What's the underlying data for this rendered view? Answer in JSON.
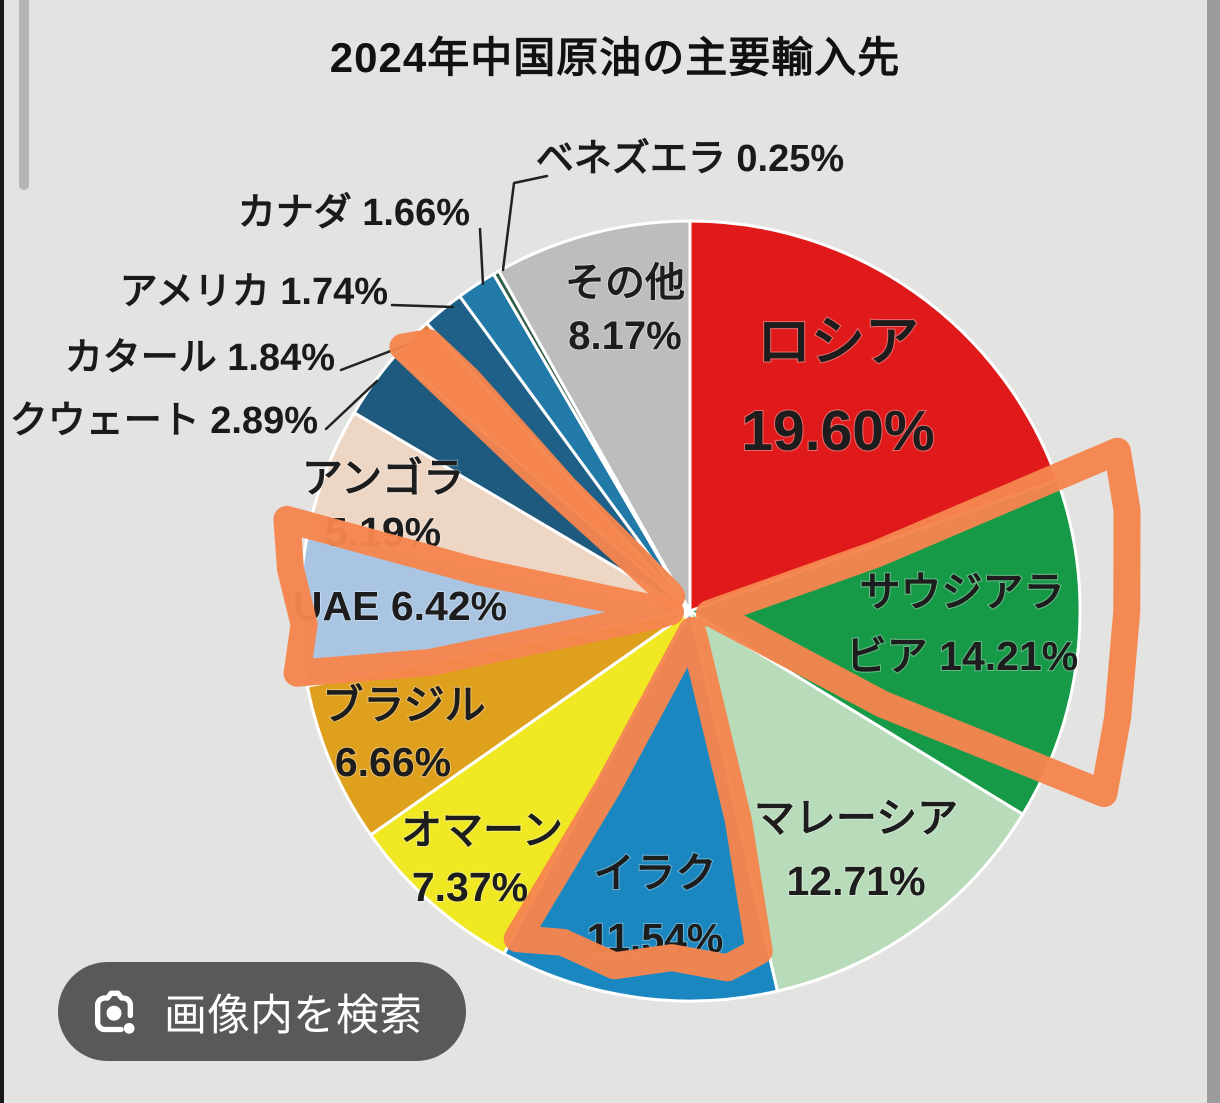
{
  "page": {
    "background_color": "#e3e3e2",
    "edge_strip_left_color": "#181818",
    "edge_strip_right_color": "#9c9c9c"
  },
  "chart_data": {
    "type": "pie",
    "title": "2024年中国原油の主要輸入先",
    "unit": "%",
    "legend_position": "none",
    "series": [
      {
        "label": "ロシア",
        "value": 19.6,
        "color": "#e01a1b",
        "label_lines": [
          "ロシア",
          "19.60%"
        ],
        "label_placement": "inside"
      },
      {
        "label": "サウジアラビア",
        "value": 14.21,
        "color": "#169a48",
        "label_lines": [
          "サウジアラ",
          "ビア 14.21%"
        ],
        "label_placement": "inside"
      },
      {
        "label": "マレーシア",
        "value": 12.71,
        "color": "#b8dbb9",
        "label_lines": [
          "マレーシア",
          "12.71%"
        ],
        "label_placement": "inside"
      },
      {
        "label": "イラク",
        "value": 11.54,
        "color": "#1b87c1",
        "label_lines": [
          "イラク",
          "11.54%"
        ],
        "label_placement": "inside"
      },
      {
        "label": "オマーン",
        "value": 7.37,
        "color": "#f0e822",
        "label_lines": [
          "オマーン",
          "7.37%"
        ],
        "label_placement": "inside"
      },
      {
        "label": "ブラジル",
        "value": 6.66,
        "color": "#dfa01d",
        "label_lines": [
          "ブラジル",
          "6.66%"
        ],
        "label_placement": "inside"
      },
      {
        "label": "UAE",
        "value": 6.42,
        "color": "#a9c5e2",
        "label_lines": [
          "UAE 6.42%"
        ],
        "label_placement": "inside"
      },
      {
        "label": "アンゴラ",
        "value": 5.19,
        "color": "#edd6c4",
        "label_lines": [
          "アンゴラ",
          "5.19%"
        ],
        "label_placement": "inside"
      },
      {
        "label": "クウェート",
        "value": 2.89,
        "color": "#1e5a7d",
        "label_lines": [
          "クウェート 2.89%"
        ],
        "label_placement": "outside"
      },
      {
        "label": "カタール",
        "value": 1.84,
        "color": "#d97b36",
        "label_lines": [
          "カタール 1.84%"
        ],
        "label_placement": "outside"
      },
      {
        "label": "アメリカ",
        "value": 1.74,
        "color": "#1f6089",
        "label_lines": [
          "アメリカ 1.74%"
        ],
        "label_placement": "outside"
      },
      {
        "label": "カナダ",
        "value": 1.66,
        "color": "#227aa8",
        "label_lines": [
          "カナダ 1.66%"
        ],
        "label_placement": "outside"
      },
      {
        "label": "ベネズエラ",
        "value": 0.25,
        "color": "#2f5d45",
        "label_lines": [
          "ベネズエラ 0.25%"
        ],
        "label_placement": "outside"
      },
      {
        "label": "その他",
        "value": 8.17,
        "color": "#bdbdbd",
        "label_lines": [
          "その他",
          "8.17%"
        ],
        "label_placement": "inside"
      }
    ],
    "annotation": {
      "type": "hand-drawn-highlight",
      "color": "#f6854e",
      "highlighted_slices": [
        "サウジアラビア",
        "イラク",
        "UAE",
        "カタール"
      ]
    }
  },
  "lens_button": {
    "label": "画像内を検索",
    "icon": "camera-lens-icon",
    "background_color": "#59595b",
    "text_color": "#ffffff"
  }
}
